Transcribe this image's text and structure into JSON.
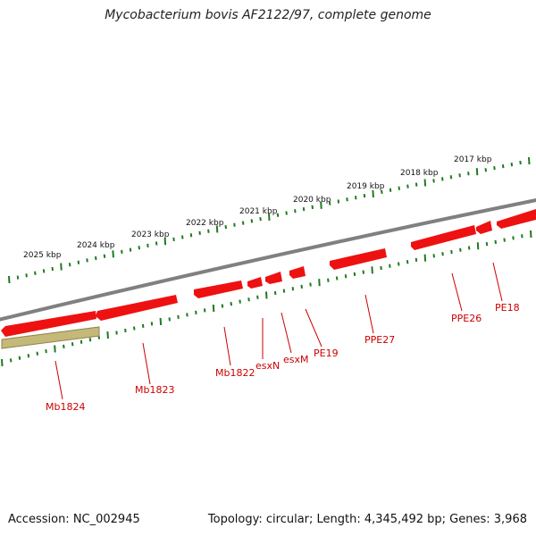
{
  "title": "Mycobacterium bovis AF2122/97, complete genome",
  "accession": "Accession: NC_002945",
  "stats": "Topology: circular; Length: 4,345,492 bp; Genes: 3,968",
  "colors": {
    "backbone": "#808080",
    "gene": "#ee1111",
    "gene_shadow": "#ff6666",
    "pseudogene": "#b3a862",
    "tick": "#1f7a1f",
    "gene_label": "#cc0000"
  },
  "scale_ticks": [
    {
      "label": "2025 kbp"
    },
    {
      "label": "2024 kbp"
    },
    {
      "label": "2023 kbp"
    },
    {
      "label": "2022 kbp"
    },
    {
      "label": "2021 kbp"
    },
    {
      "label": "2020 kbp"
    },
    {
      "label": "2019 kbp"
    },
    {
      "label": "2018 kbp"
    },
    {
      "label": "2017 kbp"
    }
  ],
  "genes": [
    {
      "name": "Mb1824",
      "type": "pseudogene"
    },
    {
      "name": "Mb1823",
      "type": "gene"
    },
    {
      "name": "Mb1822",
      "type": "gene"
    },
    {
      "name": "esxN",
      "type": "gene"
    },
    {
      "name": "esxM",
      "type": "gene"
    },
    {
      "name": "PE19",
      "type": "gene"
    },
    {
      "name": "PPE27",
      "type": "gene"
    },
    {
      "name": "PPE26",
      "type": "gene"
    },
    {
      "name": "PE18",
      "type": "gene"
    }
  ]
}
